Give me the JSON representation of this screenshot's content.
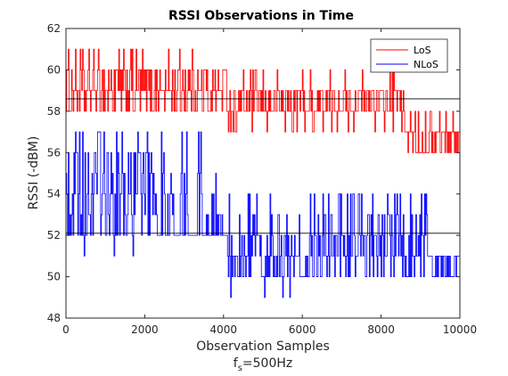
{
  "chart_data": {
    "type": "line",
    "title": "RSSI Observations in Time",
    "xlabel": "Observation Samples",
    "xlabel_sub_base": "f",
    "xlabel_sub_subscript": "s",
    "xlabel_sub_rest": "=500Hz",
    "ylabel": "RSSI (-dBM)",
    "xlim": [
      0,
      10000
    ],
    "ylim": [
      48,
      62
    ],
    "xticks": [
      0,
      2000,
      4000,
      6000,
      8000,
      10000
    ],
    "yticks": [
      48,
      50,
      52,
      54,
      56,
      58,
      60,
      62
    ],
    "grid": false,
    "legend_position": "top-right",
    "series": [
      {
        "name": "LoS",
        "color": "#ff0000",
        "mean": 58.6,
        "segments": [
          {
            "x_start": 0,
            "x_end": 4100,
            "levels": [
              58,
              59,
              60,
              61
            ],
            "weights": [
              0.3,
              0.35,
              0.3,
              0.05
            ]
          },
          {
            "x_start": 4100,
            "x_end": 8600,
            "levels": [
              57,
              58,
              59,
              60
            ],
            "weights": [
              0.1,
              0.45,
              0.4,
              0.05
            ]
          },
          {
            "x_start": 8600,
            "x_end": 10000,
            "levels": [
              56,
              57,
              58
            ],
            "weights": [
              0.4,
              0.4,
              0.2
            ]
          }
        ]
      },
      {
        "name": "NLoS",
        "color": "#0000ff",
        "mean": 52.1,
        "segments": [
          {
            "x_start": 0,
            "x_end": 2300,
            "levels": [
              51,
              52,
              53,
              54,
              55,
              56,
              57
            ],
            "weights": [
              0.05,
              0.25,
              0.15,
              0.15,
              0.15,
              0.15,
              0.1
            ]
          },
          {
            "x_start": 2300,
            "x_end": 4100,
            "levels": [
              52,
              53,
              54,
              55,
              56,
              57
            ],
            "weights": [
              0.6,
              0.1,
              0.1,
              0.1,
              0.06,
              0.04
            ]
          },
          {
            "x_start": 4100,
            "x_end": 6200,
            "levels": [
              49,
              50,
              51,
              52,
              53,
              54
            ],
            "weights": [
              0.05,
              0.35,
              0.25,
              0.2,
              0.1,
              0.05
            ]
          },
          {
            "x_start": 6200,
            "x_end": 9200,
            "levels": [
              50,
              51,
              52,
              53,
              54
            ],
            "weights": [
              0.25,
              0.25,
              0.2,
              0.15,
              0.15
            ]
          },
          {
            "x_start": 9200,
            "x_end": 10000,
            "levels": [
              50,
              51
            ],
            "weights": [
              0.6,
              0.4
            ]
          }
        ]
      }
    ]
  }
}
